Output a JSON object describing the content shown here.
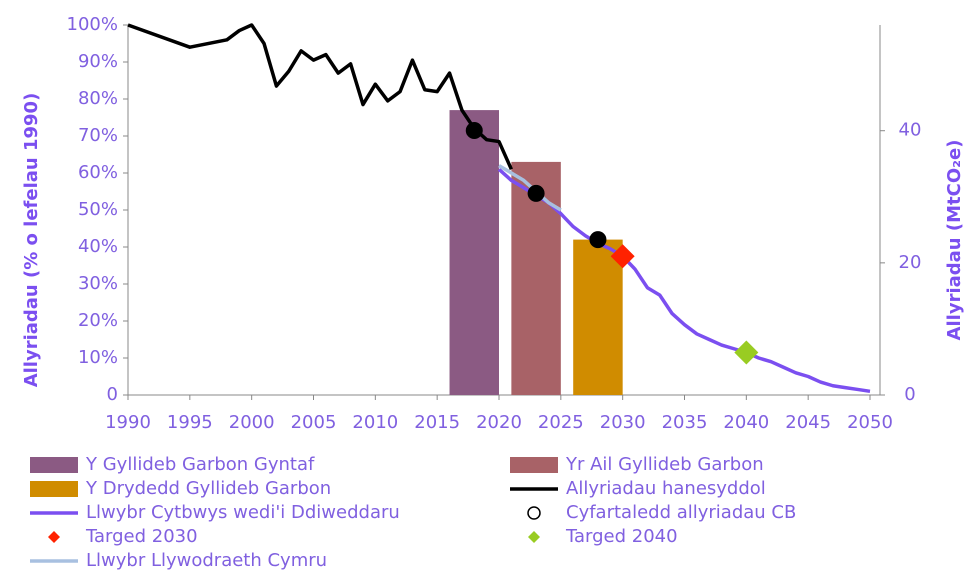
{
  "chart_data": {
    "type": "combo",
    "ylabel": "Allyriadau (% o lefelau 1990)",
    "y2label": "Allyriadau (MtCO₂e)",
    "xlim": [
      1990,
      2050
    ],
    "xticks": [
      1990,
      1995,
      2000,
      2005,
      2010,
      2015,
      2020,
      2025,
      2030,
      2035,
      2040,
      2045,
      2050
    ],
    "ylim": [
      0,
      100
    ],
    "yticks": [
      0,
      {
        "value": 10,
        "label": "10%"
      },
      {
        "value": 20,
        "label": "20%"
      },
      {
        "value": 30,
        "label": "30%"
      },
      {
        "value": 40,
        "label": "40%"
      },
      {
        "value": 50,
        "label": "50%"
      },
      {
        "value": 60,
        "label": "60%"
      },
      {
        "value": 70,
        "label": "70%"
      },
      {
        "value": 80,
        "label": "80%"
      },
      {
        "value": 90,
        "label": "90%"
      },
      {
        "value": 100,
        "label": "100%"
      }
    ],
    "y2lim": [
      0,
      56
    ],
    "y2ticks": [
      0,
      20,
      40
    ],
    "series": [
      {
        "name": "Y Gyllideb Garbon Gyntaf",
        "type": "bar",
        "color": "#8b5a83",
        "x": [
          2018
        ],
        "values": [
          77
        ]
      },
      {
        "name": "Yr Ail Gyllideb Garbon",
        "type": "bar",
        "color": "#a86267",
        "x": [
          2023
        ],
        "values": [
          63
        ]
      },
      {
        "name": "Y Drydedd Gyllideb Garbon",
        "type": "bar",
        "color": "#d08c00",
        "x": [
          2028
        ],
        "values": [
          42
        ]
      },
      {
        "name": "Allyriadau hanesyddol",
        "type": "line",
        "color": "#000000",
        "x": [
          1990,
          1995,
          1998,
          1999,
          2000,
          2001,
          2002,
          2003,
          2004,
          2005,
          2006,
          2007,
          2008,
          2009,
          2010,
          2011,
          2012,
          2013,
          2014,
          2015,
          2016,
          2017,
          2018,
          2019,
          2020,
          2021
        ],
        "values": [
          100,
          94,
          96,
          98.5,
          100,
          95,
          83.5,
          87.5,
          93,
          90.5,
          92,
          87,
          89.5,
          78.5,
          84,
          79.5,
          82,
          90.5,
          82.5,
          82,
          87,
          77,
          72,
          69,
          68.5,
          61
        ]
      },
      {
        "name": "Llwybr Cytbwys wedi'i Ddiweddaru",
        "type": "line",
        "color": "#7b4ff0",
        "x": [
          2020,
          2021,
          2022,
          2023,
          2024,
          2025,
          2026,
          2027,
          2028,
          2029,
          2030,
          2031,
          2032,
          2033,
          2034,
          2035,
          2036,
          2037,
          2038,
          2039,
          2040,
          2041,
          2042,
          2043,
          2044,
          2045,
          2046,
          2047,
          2048,
          2049,
          2050
        ],
        "values": [
          61,
          58,
          56,
          54,
          52,
          49,
          45.5,
          43,
          41,
          39.5,
          37.5,
          34,
          29,
          27,
          22,
          19,
          16.5,
          15,
          13.5,
          12.5,
          11.5,
          10,
          9,
          7.5,
          6,
          5,
          3.5,
          2.5,
          2,
          1.5,
          1
        ]
      },
      {
        "name": "Cyfartaledd allyriadau CB",
        "type": "scatter",
        "marker": "circle",
        "color": "#000000",
        "x": [
          2018,
          2023,
          2028
        ],
        "values": [
          71.5,
          54.5,
          42
        ]
      },
      {
        "name": "Targed 2030",
        "type": "scatter",
        "marker": "diamond",
        "color": "#ff2200",
        "x": [
          2030
        ],
        "values": [
          37.5
        ]
      },
      {
        "name": "Targed 2040",
        "type": "scatter",
        "marker": "diamond",
        "color": "#99cc22",
        "x": [
          2040
        ],
        "values": [
          11.5
        ]
      },
      {
        "name": "Llwybr Llywodraeth Cymru",
        "type": "line",
        "color": "#a8c0e0",
        "x": [
          2020,
          2021,
          2022,
          2023,
          2024,
          2025
        ],
        "values": [
          62,
          60,
          58,
          55,
          52,
          50
        ]
      }
    ]
  }
}
